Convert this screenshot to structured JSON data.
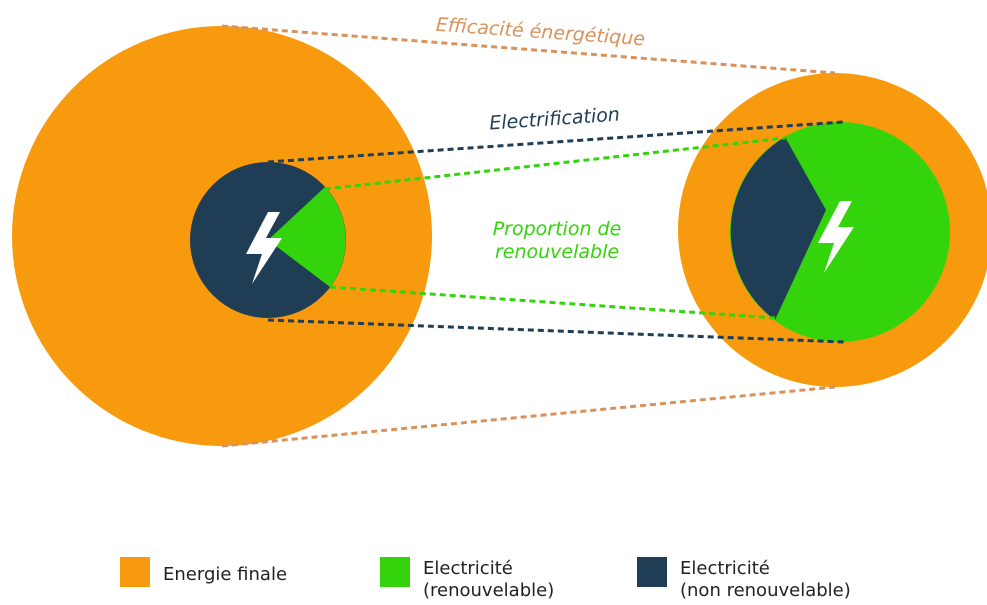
{
  "annotations": {
    "efficiency": "Efficacité énergétique",
    "electrification": "Electrification",
    "renewable_share": [
      "Proportion de",
      "renouvelable"
    ]
  },
  "legend": [
    {
      "label": [
        "Energie finale"
      ]
    },
    {
      "label": [
        "Electricité",
        "(renouvelable)"
      ]
    },
    {
      "label": [
        "Electricité",
        "(non renouvelable)"
      ]
    }
  ]
}
